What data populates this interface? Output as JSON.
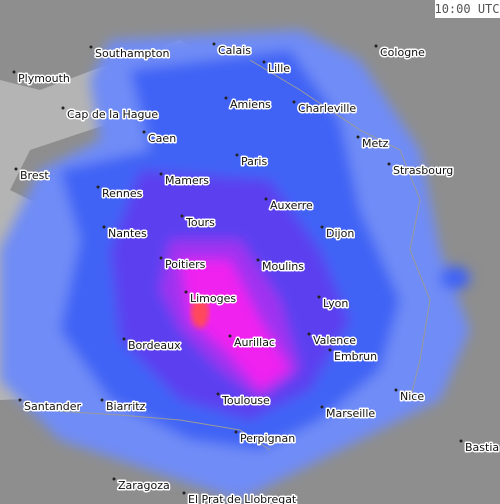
{
  "timestamp": "10:00 UTC",
  "cities": [
    "Southampton",
    "Calais",
    "Lille",
    "Cologne",
    "Plymouth",
    "Amiens",
    "Charleville",
    "Cap de la Hague",
    "Caen",
    "Metz",
    "Paris",
    "Strasbourg",
    "Brest",
    "Mamers",
    "Rennes",
    "Auxerre",
    "Tours",
    "Nantes",
    "Dijon",
    "Poitiers",
    "Moulins",
    "Limoges",
    "Lyon",
    "Valence",
    "Aurillac",
    "Bordeaux",
    "Embrun",
    "Nice",
    "Toulouse",
    "Santander",
    "Biarritz",
    "Marseille",
    "Perpignan",
    "Bastia",
    "Zaragoza",
    "El Prat de Llobregat"
  ]
}
